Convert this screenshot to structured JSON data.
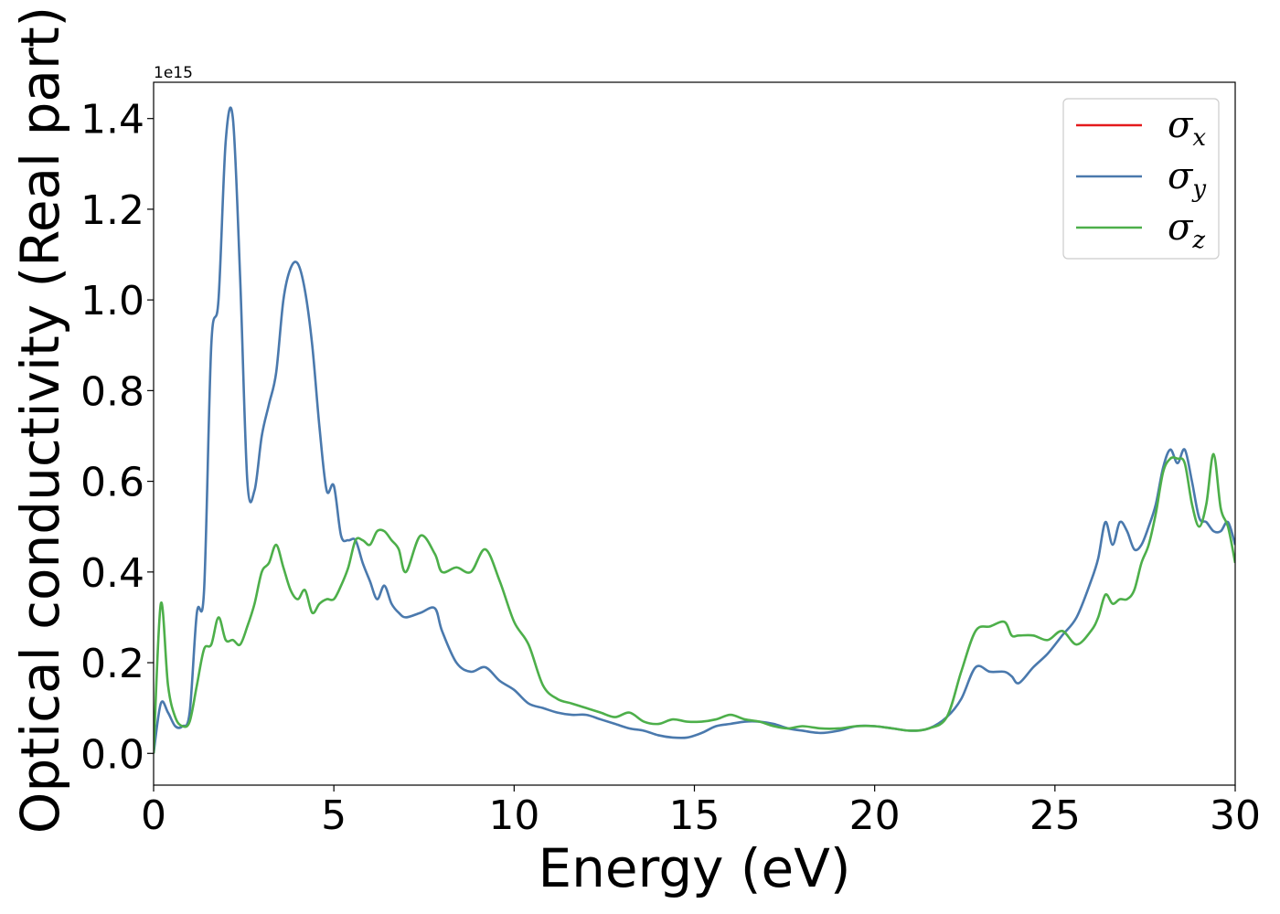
{
  "chart_data": {
    "type": "line",
    "xlabel": "Energy (eV)",
    "ylabel": "Optical conductivity (Real part)",
    "y_offset_text": "1e15",
    "xlim": [
      0,
      30
    ],
    "ylim": [
      -0.07,
      1.48
    ],
    "x_ticks": [
      0,
      5,
      10,
      15,
      20,
      25,
      30
    ],
    "x_tick_labels": [
      "0",
      "5",
      "10",
      "15",
      "20",
      "25",
      "30"
    ],
    "y_ticks": [
      0.0,
      0.2,
      0.4,
      0.6,
      0.8,
      1.0,
      1.2,
      1.4
    ],
    "y_tick_labels": [
      "0.0",
      "0.2",
      "0.4",
      "0.6",
      "0.8",
      "1.0",
      "1.2",
      "1.4"
    ],
    "legend_position": "top-right",
    "grid": false,
    "series": [
      {
        "name": "σx",
        "symbol": "σ",
        "subscript": "x",
        "color": "#e41a1c",
        "visible_line": false,
        "x": [
          0.0,
          0.2,
          0.4,
          0.6,
          0.8,
          1.0,
          1.2,
          1.4,
          1.6,
          1.8,
          2.0,
          2.2,
          2.4,
          2.6,
          2.8,
          3.0,
          3.2,
          3.4,
          3.6,
          3.8,
          4.0,
          4.2,
          4.4,
          4.6,
          4.8,
          5.0,
          5.2,
          5.4,
          5.6,
          5.8,
          6.0,
          6.2,
          6.4,
          6.6,
          6.8,
          7.0,
          7.4,
          7.8,
          8.0,
          8.4,
          8.8,
          9.2,
          9.6,
          10.0,
          10.4,
          10.8,
          11.2,
          11.6,
          12.0,
          12.4,
          12.8,
          13.2,
          13.6,
          14.0,
          14.4,
          14.8,
          15.2,
          15.6,
          16.0,
          16.4,
          16.8,
          17.2,
          17.6,
          18.0,
          18.5,
          19.0,
          19.5,
          20.0,
          20.5,
          21.0,
          21.5,
          22.0,
          22.4,
          22.8,
          23.2,
          23.6,
          23.8,
          24.0,
          24.4,
          24.8,
          25.2,
          25.6,
          26.0,
          26.2,
          26.4,
          26.6,
          26.8,
          27.0,
          27.2,
          27.4,
          27.6,
          27.8,
          28.0,
          28.2,
          28.4,
          28.6,
          28.8,
          29.0,
          29.2,
          29.4,
          29.6,
          29.8,
          30.0
        ],
        "y": [
          0.0,
          0.11,
          0.09,
          0.06,
          0.06,
          0.09,
          0.31,
          0.36,
          0.9,
          1.0,
          1.35,
          1.4,
          1.05,
          0.6,
          0.58,
          0.7,
          0.77,
          0.84,
          1.0,
          1.07,
          1.08,
          1.02,
          0.9,
          0.72,
          0.58,
          0.59,
          0.48,
          0.47,
          0.47,
          0.42,
          0.38,
          0.34,
          0.37,
          0.33,
          0.31,
          0.3,
          0.31,
          0.32,
          0.27,
          0.2,
          0.18,
          0.19,
          0.16,
          0.14,
          0.11,
          0.1,
          0.09,
          0.085,
          0.085,
          0.075,
          0.065,
          0.055,
          0.05,
          0.04,
          0.035,
          0.035,
          0.045,
          0.06,
          0.065,
          0.07,
          0.07,
          0.065,
          0.055,
          0.05,
          0.045,
          0.05,
          0.06,
          0.06,
          0.055,
          0.05,
          0.055,
          0.08,
          0.12,
          0.19,
          0.18,
          0.18,
          0.17,
          0.155,
          0.19,
          0.22,
          0.26,
          0.3,
          0.38,
          0.43,
          0.51,
          0.46,
          0.51,
          0.49,
          0.45,
          0.46,
          0.5,
          0.55,
          0.63,
          0.67,
          0.64,
          0.67,
          0.6,
          0.52,
          0.51,
          0.49,
          0.49,
          0.51,
          0.46
        ]
      },
      {
        "name": "σy",
        "symbol": "σ",
        "subscript": "y",
        "color": "#4a79ad",
        "visible_line": true,
        "x": [
          0.0,
          0.2,
          0.4,
          0.6,
          0.8,
          1.0,
          1.2,
          1.4,
          1.6,
          1.8,
          2.0,
          2.2,
          2.4,
          2.6,
          2.8,
          3.0,
          3.2,
          3.4,
          3.6,
          3.8,
          4.0,
          4.2,
          4.4,
          4.6,
          4.8,
          5.0,
          5.2,
          5.4,
          5.6,
          5.8,
          6.0,
          6.2,
          6.4,
          6.6,
          6.8,
          7.0,
          7.4,
          7.8,
          8.0,
          8.4,
          8.8,
          9.2,
          9.6,
          10.0,
          10.4,
          10.8,
          11.2,
          11.6,
          12.0,
          12.4,
          12.8,
          13.2,
          13.6,
          14.0,
          14.4,
          14.8,
          15.2,
          15.6,
          16.0,
          16.4,
          16.8,
          17.2,
          17.6,
          18.0,
          18.5,
          19.0,
          19.5,
          20.0,
          20.5,
          21.0,
          21.5,
          22.0,
          22.4,
          22.8,
          23.2,
          23.6,
          23.8,
          24.0,
          24.4,
          24.8,
          25.2,
          25.6,
          26.0,
          26.2,
          26.4,
          26.6,
          26.8,
          27.0,
          27.2,
          27.4,
          27.6,
          27.8,
          28.0,
          28.2,
          28.4,
          28.6,
          28.8,
          29.0,
          29.2,
          29.4,
          29.6,
          29.8,
          30.0
        ],
        "y": [
          0.0,
          0.11,
          0.09,
          0.06,
          0.06,
          0.09,
          0.31,
          0.36,
          0.9,
          1.0,
          1.35,
          1.4,
          1.05,
          0.6,
          0.58,
          0.7,
          0.77,
          0.84,
          1.0,
          1.07,
          1.08,
          1.02,
          0.9,
          0.72,
          0.58,
          0.59,
          0.48,
          0.47,
          0.47,
          0.42,
          0.38,
          0.34,
          0.37,
          0.33,
          0.31,
          0.3,
          0.31,
          0.32,
          0.27,
          0.2,
          0.18,
          0.19,
          0.16,
          0.14,
          0.11,
          0.1,
          0.09,
          0.085,
          0.085,
          0.075,
          0.065,
          0.055,
          0.05,
          0.04,
          0.035,
          0.035,
          0.045,
          0.06,
          0.065,
          0.07,
          0.07,
          0.065,
          0.055,
          0.05,
          0.045,
          0.05,
          0.06,
          0.06,
          0.055,
          0.05,
          0.055,
          0.08,
          0.12,
          0.19,
          0.18,
          0.18,
          0.17,
          0.155,
          0.19,
          0.22,
          0.26,
          0.3,
          0.38,
          0.43,
          0.51,
          0.46,
          0.51,
          0.49,
          0.45,
          0.46,
          0.5,
          0.55,
          0.63,
          0.67,
          0.64,
          0.67,
          0.6,
          0.52,
          0.51,
          0.49,
          0.49,
          0.51,
          0.46
        ]
      },
      {
        "name": "σz",
        "symbol": "σ",
        "subscript": "z",
        "color": "#4daf4a",
        "visible_line": true,
        "x": [
          0.0,
          0.2,
          0.4,
          0.6,
          0.8,
          1.0,
          1.2,
          1.4,
          1.6,
          1.8,
          2.0,
          2.2,
          2.4,
          2.6,
          2.8,
          3.0,
          3.2,
          3.4,
          3.6,
          3.8,
          4.0,
          4.2,
          4.4,
          4.6,
          4.8,
          5.0,
          5.2,
          5.4,
          5.6,
          5.8,
          6.0,
          6.2,
          6.4,
          6.6,
          6.8,
          7.0,
          7.4,
          7.8,
          8.0,
          8.4,
          8.8,
          9.2,
          9.6,
          10.0,
          10.4,
          10.8,
          11.2,
          11.6,
          12.0,
          12.4,
          12.8,
          13.2,
          13.6,
          14.0,
          14.4,
          14.8,
          15.2,
          15.6,
          16.0,
          16.4,
          16.8,
          17.2,
          17.6,
          18.0,
          18.5,
          19.0,
          19.5,
          20.0,
          20.5,
          21.0,
          21.5,
          22.0,
          22.4,
          22.8,
          23.2,
          23.6,
          23.8,
          24.0,
          24.4,
          24.8,
          25.2,
          25.6,
          26.0,
          26.2,
          26.4,
          26.6,
          26.8,
          27.0,
          27.2,
          27.4,
          27.6,
          27.8,
          28.0,
          28.2,
          28.4,
          28.6,
          28.8,
          29.0,
          29.2,
          29.4,
          29.6,
          29.8,
          30.0
        ],
        "y": [
          0.0,
          0.33,
          0.15,
          0.08,
          0.06,
          0.07,
          0.15,
          0.23,
          0.24,
          0.3,
          0.25,
          0.25,
          0.24,
          0.28,
          0.33,
          0.4,
          0.42,
          0.46,
          0.41,
          0.36,
          0.34,
          0.36,
          0.31,
          0.33,
          0.34,
          0.34,
          0.37,
          0.41,
          0.47,
          0.47,
          0.46,
          0.49,
          0.49,
          0.47,
          0.45,
          0.4,
          0.48,
          0.44,
          0.4,
          0.41,
          0.4,
          0.45,
          0.38,
          0.29,
          0.24,
          0.15,
          0.12,
          0.11,
          0.1,
          0.09,
          0.08,
          0.09,
          0.07,
          0.065,
          0.075,
          0.07,
          0.07,
          0.075,
          0.085,
          0.075,
          0.07,
          0.06,
          0.055,
          0.06,
          0.055,
          0.055,
          0.06,
          0.06,
          0.055,
          0.05,
          0.055,
          0.08,
          0.18,
          0.27,
          0.28,
          0.29,
          0.26,
          0.26,
          0.26,
          0.25,
          0.27,
          0.24,
          0.27,
          0.3,
          0.35,
          0.33,
          0.34,
          0.34,
          0.36,
          0.42,
          0.46,
          0.53,
          0.62,
          0.65,
          0.65,
          0.64,
          0.55,
          0.5,
          0.55,
          0.66,
          0.54,
          0.5,
          0.42
        ]
      }
    ]
  }
}
